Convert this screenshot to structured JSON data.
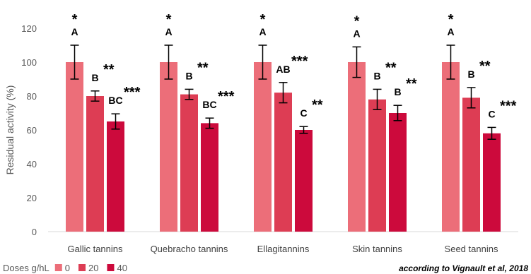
{
  "chart_data": {
    "type": "bar",
    "ylabel": "Residual activity (%)",
    "ylim": [
      0,
      120
    ],
    "yticks": [
      0,
      20,
      40,
      60,
      80,
      100,
      120
    ],
    "grid": false,
    "categories": [
      "Gallic tannins",
      "Quebracho tannins",
      "Ellagitannins",
      "Skin tannins",
      "Seed tannins"
    ],
    "series": [
      {
        "name": "0",
        "color": "#ec6e79",
        "values": [
          100,
          100,
          100,
          100,
          100
        ],
        "errors": [
          10,
          10,
          10,
          9,
          10
        ],
        "letters": [
          "A",
          "A",
          "A",
          "A",
          "A"
        ],
        "stars": [
          "*",
          "*",
          "*",
          "*",
          "*"
        ]
      },
      {
        "name": "20",
        "color": "#dd3d54",
        "values": [
          80,
          81,
          82,
          78,
          79
        ],
        "errors": [
          3,
          3,
          6,
          6,
          6
        ],
        "letters": [
          "B",
          "B",
          "AB",
          "B",
          "B"
        ],
        "stars": [
          "**",
          "**",
          "***",
          "**",
          "**"
        ]
      },
      {
        "name": "40",
        "color": "#cc0a3c",
        "values": [
          65,
          64,
          60,
          70,
          58
        ],
        "errors": [
          4.5,
          3,
          2,
          4.5,
          3.5
        ],
        "letters": [
          "BC",
          "BC",
          "C",
          "B",
          "C"
        ],
        "stars": [
          "***",
          "***",
          "**",
          "**",
          "***"
        ]
      }
    ],
    "legend": {
      "title": "Doses g/hL",
      "placement": "bottom-left"
    },
    "source_note": "according to Vignault et al, 2018"
  }
}
